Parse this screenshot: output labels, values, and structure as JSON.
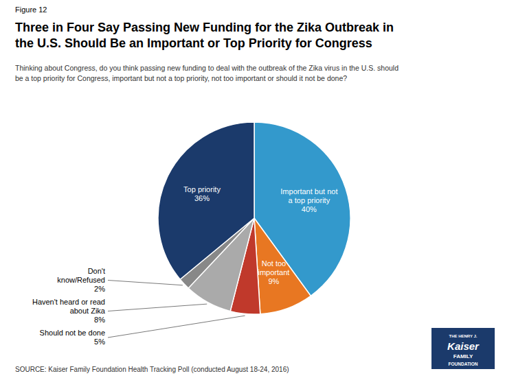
{
  "chart_data": {
    "type": "pie",
    "figure_label": "Figure 12",
    "title": "Three in Four Say Passing New Funding for the Zika Outbreak in\nthe U.S. Should Be an Important or Top Priority for Congress",
    "subtitle": "Thinking about Congress, do you think passing new funding to deal with the outbreak of the Zika virus in the U.S. should\nbe a top priority for Congress, important but not a top priority, not too important or should it not be done?",
    "source": "SOURCE: Kaiser Family Foundation Health Tracking Poll (conducted August 18-24, 2016)",
    "categories": [
      "Important but not\na top priority",
      "Not too\nimportant",
      "Should not be done",
      "Haven't heard or read\nabout Zika",
      "Don't\nknow/Refused",
      "Top priority"
    ],
    "values": [
      40,
      9,
      5,
      8,
      2,
      36
    ],
    "value_labels": [
      "40%",
      "9%",
      "5%",
      "8%",
      "2%",
      "36%"
    ],
    "colors": [
      "#3399CC",
      "#E87722",
      "#C0392B",
      "#AAAAAA",
      "#888888",
      "#1B3A6B"
    ],
    "data_labels": true,
    "logo": {
      "text": [
        "THE HENRY J.",
        "Kaiser",
        "FAMILY",
        "FOUNDATION"
      ],
      "color": "#1B3A6B"
    }
  }
}
